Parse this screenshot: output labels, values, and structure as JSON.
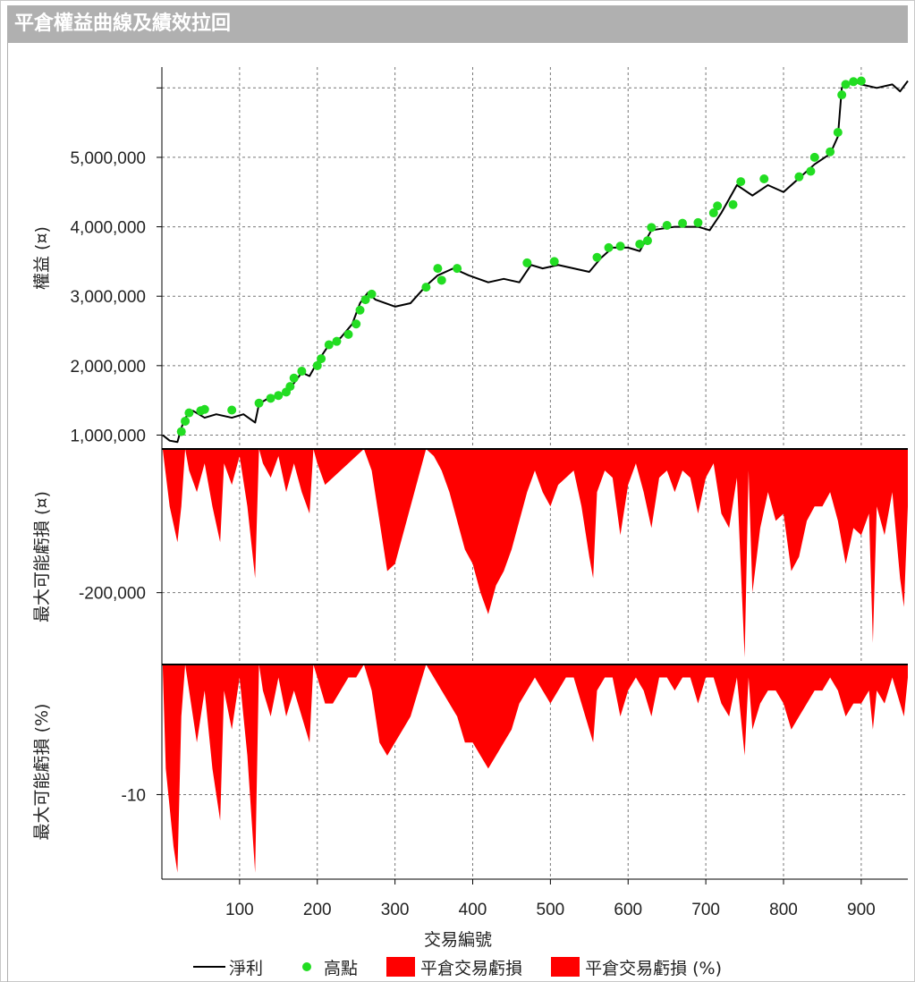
{
  "title": "平倉權益曲線及績效拉回",
  "chart_data": [
    {
      "type": "line",
      "name": "equity",
      "ylabel": "權益 (¤)",
      "ylim": [
        800000,
        6300000
      ],
      "yticks": [
        1000000,
        2000000,
        3000000,
        4000000,
        5000000,
        6000000
      ],
      "ytick_labels": [
        "1,000,000",
        "2,000,000",
        "3,000,000",
        "4,000,000",
        "5,000,000",
        ""
      ],
      "series": [
        {
          "name": "淨利",
          "color": "#000000",
          "x": [
            1,
            10,
            20,
            25,
            30,
            40,
            55,
            70,
            90,
            105,
            120,
            125,
            140,
            160,
            180,
            190,
            200,
            215,
            230,
            245,
            255,
            265,
            275,
            300,
            320,
            340,
            355,
            375,
            395,
            420,
            440,
            460,
            475,
            490,
            510,
            530,
            550,
            565,
            580,
            600,
            615,
            630,
            660,
            690,
            705,
            720,
            740,
            760,
            780,
            800,
            820,
            840,
            860,
            870,
            875,
            880,
            890,
            900,
            920,
            940,
            950,
            960
          ],
          "values": [
            1000000,
            920000,
            900000,
            1100000,
            1250000,
            1350000,
            1250000,
            1300000,
            1250000,
            1300000,
            1180000,
            1450000,
            1550000,
            1600000,
            1900000,
            1850000,
            2050000,
            2300000,
            2400000,
            2600000,
            2900000,
            3050000,
            2950000,
            2850000,
            2900000,
            3150000,
            3300000,
            3400000,
            3300000,
            3200000,
            3250000,
            3200000,
            3450000,
            3400000,
            3450000,
            3400000,
            3350000,
            3550000,
            3700000,
            3700000,
            3650000,
            3950000,
            4000000,
            4000000,
            3950000,
            4200000,
            4600000,
            4450000,
            4600000,
            4500000,
            4700000,
            4900000,
            5050000,
            5300000,
            6000000,
            6050000,
            6100000,
            6050000,
            6000000,
            6050000,
            5950000,
            6100000
          ]
        },
        {
          "name": "高點",
          "color": "#22dd22",
          "x": [
            25,
            30,
            35,
            50,
            55,
            90,
            125,
            140,
            150,
            160,
            165,
            170,
            180,
            200,
            205,
            215,
            225,
            240,
            250,
            255,
            262,
            270,
            340,
            355,
            360,
            380,
            470,
            505,
            560,
            575,
            590,
            615,
            625,
            630,
            650,
            670,
            690,
            710,
            715,
            735,
            745,
            775,
            820,
            835,
            840,
            860,
            870,
            875,
            880,
            890,
            900
          ],
          "values": [
            1050000,
            1200000,
            1320000,
            1350000,
            1370000,
            1360000,
            1460000,
            1530000,
            1570000,
            1620000,
            1700000,
            1820000,
            1920000,
            2000000,
            2100000,
            2300000,
            2350000,
            2450000,
            2600000,
            2800000,
            2950000,
            3030000,
            3130000,
            3400000,
            3230000,
            3400000,
            3480000,
            3500000,
            3560000,
            3700000,
            3720000,
            3750000,
            3800000,
            3990000,
            4020000,
            4050000,
            4060000,
            4200000,
            4300000,
            4320000,
            4650000,
            4690000,
            4720000,
            4800000,
            5000000,
            5080000,
            5360000,
            5900000,
            6050000,
            6090000,
            6100000
          ]
        }
      ]
    },
    {
      "type": "area",
      "name": "drawdown-amount",
      "ylabel": "最大可能虧損 (¤)",
      "ylim": [
        -300000,
        0
      ],
      "yticks": [
        -200000
      ],
      "ytick_labels": [
        "-200,000"
      ],
      "series": [
        {
          "name": "平倉交易虧損",
          "color": "#ff0000",
          "x": [
            1,
            10,
            20,
            25,
            30,
            35,
            45,
            55,
            65,
            75,
            80,
            90,
            100,
            110,
            120,
            125,
            130,
            140,
            150,
            160,
            170,
            180,
            190,
            195,
            200,
            210,
            220,
            230,
            240,
            250,
            260,
            270,
            280,
            290,
            300,
            310,
            320,
            330,
            340,
            350,
            360,
            370,
            380,
            390,
            400,
            410,
            420,
            430,
            440,
            450,
            460,
            470,
            480,
            490,
            500,
            510,
            520,
            530,
            540,
            550,
            555,
            560,
            570,
            580,
            590,
            600,
            610,
            620,
            630,
            640,
            650,
            660,
            670,
            680,
            690,
            700,
            710,
            720,
            730,
            740,
            750,
            755,
            760,
            770,
            780,
            790,
            800,
            810,
            820,
            830,
            840,
            850,
            860,
            870,
            880,
            890,
            900,
            910,
            915,
            920,
            930,
            940,
            950,
            955,
            960
          ],
          "values": [
            0,
            -80000,
            -130000,
            -80000,
            0,
            -30000,
            -60000,
            -20000,
            -80000,
            -130000,
            -20000,
            -50000,
            -10000,
            -80000,
            -180000,
            0,
            -20000,
            -40000,
            -10000,
            -60000,
            -20000,
            -60000,
            -90000,
            0,
            -20000,
            -50000,
            -40000,
            -30000,
            -20000,
            -10000,
            0,
            -30000,
            -100000,
            -170000,
            -160000,
            -120000,
            -80000,
            -40000,
            0,
            -10000,
            -30000,
            -60000,
            -100000,
            -140000,
            -160000,
            -200000,
            -230000,
            -190000,
            -170000,
            -140000,
            -100000,
            -60000,
            -30000,
            -60000,
            -80000,
            -50000,
            -40000,
            -30000,
            -80000,
            -150000,
            -180000,
            -60000,
            -30000,
            -40000,
            -120000,
            -50000,
            -20000,
            -60000,
            -110000,
            -40000,
            -30000,
            -60000,
            -30000,
            -40000,
            -90000,
            -40000,
            -20000,
            -90000,
            -110000,
            -40000,
            -290000,
            -30000,
            -200000,
            -110000,
            -60000,
            -100000,
            -90000,
            -170000,
            -150000,
            -100000,
            -80000,
            -80000,
            -60000,
            -100000,
            -160000,
            -110000,
            -120000,
            -90000,
            -270000,
            -80000,
            -120000,
            -60000,
            -180000,
            -220000,
            -80000
          ]
        }
      ]
    },
    {
      "type": "area",
      "name": "drawdown-percent",
      "ylabel": "最大可能虧損 (%)",
      "xlabel": "交易編號",
      "xlim": [
        0,
        960
      ],
      "xticks": [
        100,
        200,
        300,
        400,
        500,
        600,
        700,
        800,
        900
      ],
      "ylim": [
        -16.5,
        0
      ],
      "yticks": [
        -10
      ],
      "ytick_labels": [
        "-10"
      ],
      "series": [
        {
          "name": "平倉交易虧損 (%)",
          "color": "#ff0000",
          "x": [
            1,
            5,
            10,
            15,
            20,
            25,
            30,
            35,
            45,
            55,
            65,
            75,
            80,
            90,
            100,
            110,
            120,
            125,
            130,
            140,
            150,
            160,
            170,
            180,
            190,
            195,
            200,
            210,
            220,
            230,
            240,
            250,
            260,
            270,
            280,
            290,
            300,
            310,
            320,
            330,
            340,
            350,
            360,
            370,
            380,
            390,
            400,
            410,
            420,
            430,
            440,
            450,
            460,
            470,
            480,
            490,
            500,
            510,
            520,
            530,
            540,
            550,
            555,
            560,
            570,
            580,
            590,
            600,
            610,
            620,
            630,
            640,
            650,
            660,
            670,
            680,
            690,
            700,
            710,
            720,
            730,
            740,
            750,
            755,
            760,
            770,
            780,
            790,
            800,
            810,
            820,
            830,
            840,
            850,
            860,
            870,
            880,
            890,
            900,
            910,
            915,
            920,
            930,
            940,
            950,
            955,
            960
          ],
          "values": [
            0,
            -8,
            -11,
            -14,
            -16,
            -4,
            0,
            -2,
            -6,
            -2,
            -8,
            -12,
            -2,
            -5,
            -1,
            -7,
            -16,
            0,
            -2,
            -4,
            -1,
            -4,
            -2,
            -4,
            -6,
            0,
            -1,
            -3,
            -3,
            -2,
            -1,
            -1,
            0,
            -2,
            -6,
            -7,
            -6,
            -5,
            -4,
            -2,
            0,
            -1,
            -2,
            -3,
            -4,
            -6,
            -6,
            -7,
            -8,
            -7,
            -6,
            -5,
            -3,
            -2,
            -1,
            -2,
            -3,
            -2,
            -1,
            -1,
            -3,
            -5,
            -6,
            -2,
            -1,
            -1,
            -4,
            -2,
            -1,
            -2,
            -4,
            -1,
            -1,
            -2,
            -1,
            -1,
            -3,
            -1,
            -1,
            -3,
            -4,
            -1,
            -7,
            -1,
            -5,
            -3,
            -2,
            -2,
            -3,
            -5,
            -4,
            -3,
            -2,
            -2,
            -1,
            -2,
            -4,
            -3,
            -3,
            -2,
            -5,
            -2,
            -3,
            -1,
            -3,
            -4,
            -1
          ]
        }
      ]
    }
  ],
  "legend": {
    "items": [
      {
        "label": "淨利"
      },
      {
        "label": "高點"
      },
      {
        "label": "平倉交易虧損"
      },
      {
        "label": "平倉交易虧損 (%)"
      }
    ]
  }
}
